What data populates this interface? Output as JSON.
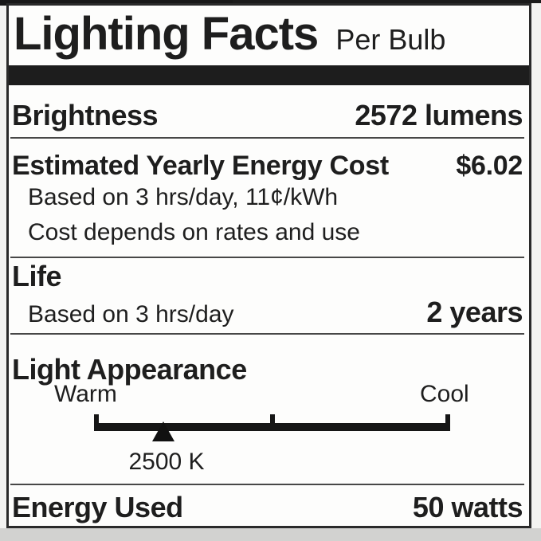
{
  "label": {
    "title": "Lighting Facts",
    "subtitle": "Per Bulb",
    "brightness": {
      "label": "Brightness",
      "value": "2572 lumens"
    },
    "energy_cost": {
      "label": "Estimated Yearly Energy Cost",
      "value": "$6.02",
      "note1": "Based on 3 hrs/day, 11¢/kWh",
      "note2": "Cost depends on rates and use"
    },
    "life": {
      "label": "Life",
      "note": "Based on 3 hrs/day",
      "value": "2 years"
    },
    "light_appearance": {
      "label": "Light Appearance",
      "warm": "Warm",
      "cool": "Cool",
      "kelvin": "2500 K"
    },
    "energy_used": {
      "label": "Energy Used",
      "value": "50 watts"
    },
    "appearance": {
      "text_color": "#1e1e1e",
      "bar_color": "#1d1d1d",
      "card_background": "#fdfdfc",
      "page_background": "#f3f3f1",
      "bottom_strip_color": "#d2d2d0"
    }
  }
}
